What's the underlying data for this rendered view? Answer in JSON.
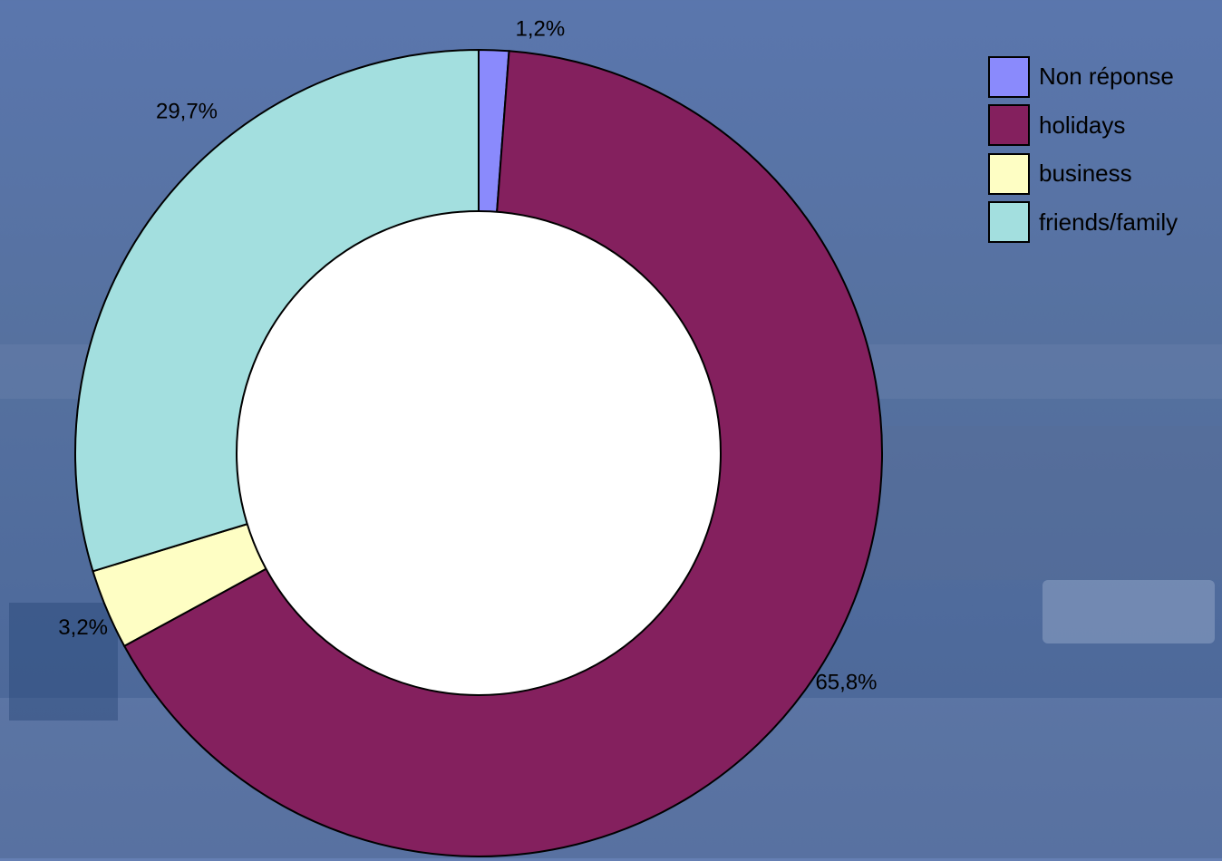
{
  "chart_data": {
    "type": "pie",
    "variant": "donut",
    "categories": [
      "Non réponse",
      "holidays",
      "business",
      "friends/family"
    ],
    "values": [
      1.2,
      65.8,
      3.2,
      29.7
    ],
    "labels": [
      "1,2%",
      "65,8%",
      "3,2%",
      "29,7%"
    ],
    "colors": [
      "#8a8afc",
      "#84205e",
      "#fefec4",
      "#a3dfdf"
    ],
    "legend_position": "top-right",
    "start_angle_deg": 0,
    "direction": "clockwise"
  },
  "background": {
    "description_color": "#5a76ad"
  }
}
